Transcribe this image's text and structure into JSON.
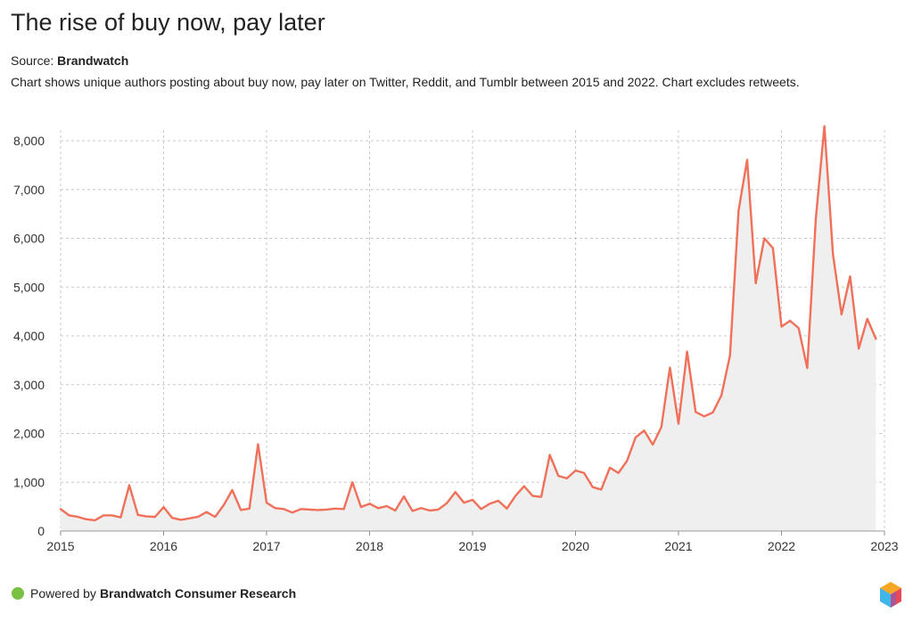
{
  "header": {
    "title": "The rise of buy now, pay later",
    "source_label": "Source:",
    "source_name": "Brandwatch",
    "description": "Chart shows unique authors posting about buy now, pay later on Twitter, Reddit, and Tumblr between 2015 and 2022. Chart excludes retweets."
  },
  "footer": {
    "powered_label": "Powered by",
    "powered_name": "Brandwatch Consumer Research"
  },
  "colors": {
    "line": "#f0705a",
    "area": "#efefef",
    "grid": "#c8c8c8",
    "logo_dot": "#7ac143"
  },
  "chart_data": {
    "type": "area",
    "title": "The rise of buy now, pay later",
    "xlabel": "",
    "ylabel": "",
    "xlim": [
      2015,
      2023
    ],
    "ylim": [
      0,
      8000
    ],
    "xticks": [
      2015,
      2016,
      2017,
      2018,
      2019,
      2020,
      2021,
      2022,
      2023
    ],
    "xtick_labels": [
      "2015",
      "2016",
      "2017",
      "2018",
      "2019",
      "2020",
      "2021",
      "2022",
      "2023"
    ],
    "yticks": [
      0,
      1000,
      2000,
      3000,
      4000,
      5000,
      6000,
      7000,
      8000
    ],
    "ytick_labels": [
      "0",
      "1,000",
      "2,000",
      "3,000",
      "4,000",
      "5,000",
      "6,000",
      "7,000",
      "8,000"
    ],
    "grid": true,
    "series": [
      {
        "name": "Unique authors",
        "frequency": "monthly",
        "start": "2015-01",
        "values": [
          450,
          320,
          290,
          240,
          220,
          320,
          320,
          280,
          940,
          330,
          300,
          290,
          490,
          270,
          230,
          260,
          290,
          390,
          290,
          530,
          840,
          430,
          460,
          1780,
          580,
          470,
          450,
          380,
          450,
          440,
          430,
          440,
          460,
          450,
          1000,
          490,
          560,
          470,
          510,
          420,
          710,
          410,
          470,
          420,
          440,
          570,
          800,
          580,
          640,
          450,
          560,
          620,
          460,
          720,
          920,
          720,
          700,
          1560,
          1130,
          1080,
          1240,
          1190,
          900,
          850,
          1300,
          1190,
          1440,
          1920,
          2060,
          1770,
          2130,
          3350,
          2200,
          3680,
          2440,
          2350,
          2430,
          2780,
          3600,
          6570,
          7610,
          5080,
          6000,
          5800,
          4190,
          4310,
          4160,
          3340,
          6400,
          8300,
          5670,
          4440,
          5220,
          3740,
          4350,
          3940
        ]
      }
    ]
  }
}
